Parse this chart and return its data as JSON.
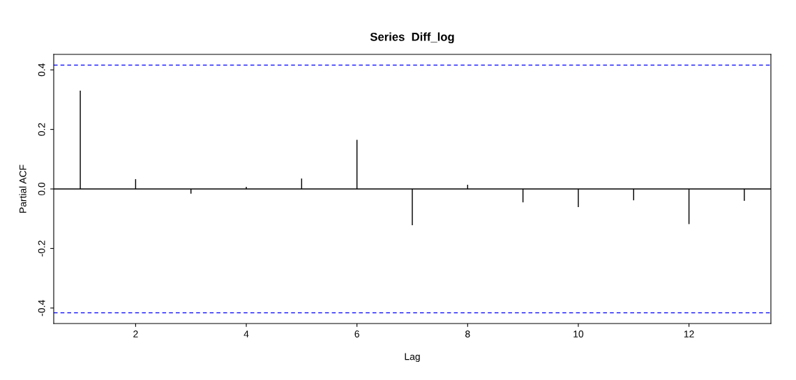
{
  "chart_data": {
    "type": "bar",
    "title": "Series  Diff_log",
    "xlabel": "Lag",
    "ylabel": "Partial ACF",
    "x": [
      1,
      2,
      3,
      4,
      5,
      6,
      7,
      8,
      9,
      10,
      11,
      12,
      13
    ],
    "values": [
      0.33,
      0.033,
      -0.016,
      0.007,
      0.035,
      0.165,
      -0.122,
      0.014,
      -0.045,
      -0.061,
      -0.038,
      -0.118,
      -0.04
    ],
    "color": "#000000",
    "xlim": [
      0.52,
      13.48
    ],
    "xticks": [
      2,
      4,
      6,
      8,
      10,
      12
    ],
    "ylim": [
      -0.452,
      0.452
    ],
    "yticks": [
      -0.4,
      -0.2,
      {
        "value": 0,
        "label": "0.0"
      },
      0.2,
      0.4
    ],
    "ref_lines": [
      {
        "axis": "y",
        "value": 0.416,
        "color": "#0000ff",
        "line_style": "dashed"
      },
      {
        "axis": "y",
        "value": -0.416,
        "color": "#0000ff",
        "line_style": "dashed"
      },
      {
        "axis": "y",
        "value": 0,
        "color": "#000000",
        "line_style": "solid"
      }
    ],
    "grid": false,
    "legend": false
  }
}
